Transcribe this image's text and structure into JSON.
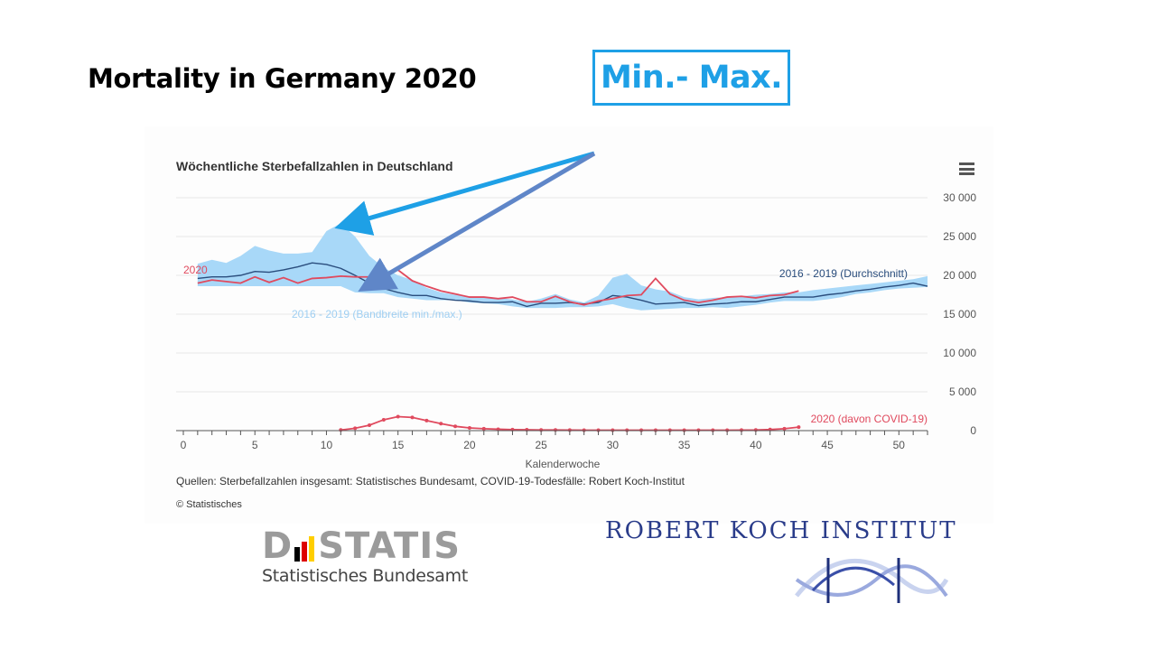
{
  "slide": {
    "title": "Mortality in Germany 2020",
    "annotation_box": "Min.- Max."
  },
  "colors": {
    "range_band": "#a8d8f8",
    "average_line": "#2a4d7d",
    "line_2020": "#e04a5e",
    "annotation_blue": "#1ea0e6",
    "arrow_second": "#5f86c8",
    "rki_blue": "#2a3c8a"
  },
  "chart_data": {
    "type": "line",
    "title": "Wöchentliche Sterbefallzahlen in Deutschland",
    "xlabel": "Kalenderwoche",
    "ylabel": "",
    "xlim": [
      0,
      52
    ],
    "ylim": [
      0,
      30000
    ],
    "x_ticks": [
      0,
      5,
      10,
      15,
      20,
      25,
      30,
      35,
      40,
      45,
      50
    ],
    "y_ticks": [
      0,
      5000,
      10000,
      15000,
      20000,
      25000,
      30000
    ],
    "y_tick_labels": [
      "0",
      "5 000",
      "10 000",
      "15 000",
      "20 000",
      "25 000",
      "30 000"
    ],
    "grid": true,
    "series": [
      {
        "name": "2016 - 2019 (Bandbreite min./max.)",
        "kind": "range",
        "x": [
          1,
          2,
          3,
          4,
          5,
          6,
          7,
          8,
          9,
          10,
          11,
          12,
          13,
          14,
          15,
          16,
          17,
          18,
          19,
          20,
          21,
          22,
          23,
          24,
          25,
          26,
          27,
          28,
          29,
          30,
          31,
          32,
          33,
          34,
          35,
          36,
          37,
          38,
          39,
          40,
          41,
          42,
          43,
          44,
          45,
          46,
          47,
          48,
          49,
          50,
          51,
          52
        ],
        "low": [
          18600,
          18600,
          18600,
          18600,
          18600,
          18600,
          18600,
          18600,
          18600,
          18600,
          18600,
          17800,
          17700,
          17700,
          17200,
          17000,
          16800,
          16800,
          16800,
          16500,
          16400,
          16300,
          16000,
          15800,
          15800,
          15800,
          15900,
          15900,
          16000,
          16300,
          15800,
          15500,
          15600,
          15700,
          15800,
          15800,
          15900,
          15800,
          16000,
          16200,
          16500,
          16700,
          16700,
          16700,
          16900,
          17200,
          17600,
          17800,
          18100,
          18300,
          18400,
          18500
        ],
        "high": [
          21500,
          22000,
          21600,
          22500,
          23800,
          23200,
          22800,
          22800,
          23000,
          25700,
          26700,
          25000,
          22500,
          21000,
          20000,
          19400,
          18400,
          17800,
          17500,
          17300,
          17100,
          17100,
          16900,
          16600,
          17000,
          17600,
          16900,
          16500,
          17400,
          19700,
          20200,
          18700,
          18200,
          17900,
          17200,
          16900,
          17100,
          17200,
          17300,
          17500,
          17600,
          17800,
          17800,
          18100,
          18300,
          18500,
          18700,
          18900,
          19100,
          19300,
          19500,
          19900
        ]
      },
      {
        "name": "2016 - 2019 (Durchschnitt)",
        "kind": "line",
        "x": [
          1,
          2,
          3,
          4,
          5,
          6,
          7,
          8,
          9,
          10,
          11,
          12,
          13,
          14,
          15,
          16,
          17,
          18,
          19,
          20,
          21,
          22,
          23,
          24,
          25,
          26,
          27,
          28,
          29,
          30,
          31,
          32,
          33,
          34,
          35,
          36,
          37,
          38,
          39,
          40,
          41,
          42,
          43,
          44,
          45,
          46,
          47,
          48,
          49,
          50,
          51,
          52
        ],
        "values": [
          19600,
          19800,
          19800,
          20000,
          20500,
          20400,
          20700,
          21100,
          21600,
          21400,
          20900,
          20000,
          19000,
          18300,
          17800,
          17400,
          17400,
          17000,
          16800,
          16700,
          16500,
          16500,
          16600,
          16000,
          16400,
          16400,
          16500,
          16300,
          16500,
          17400,
          17200,
          16800,
          16300,
          16400,
          16500,
          16100,
          16300,
          16400,
          16600,
          16600,
          16900,
          17200,
          17200,
          17200,
          17500,
          17700,
          18000,
          18200,
          18500,
          18700,
          19000,
          18600
        ]
      },
      {
        "name": "2020",
        "kind": "line",
        "x": [
          1,
          2,
          3,
          4,
          5,
          6,
          7,
          8,
          9,
          10,
          11,
          12,
          13,
          14,
          15,
          16,
          17,
          18,
          19,
          20,
          21,
          22,
          23,
          24,
          25,
          26,
          27,
          28,
          29,
          30,
          31,
          32,
          33,
          34,
          35,
          36,
          37,
          38,
          39,
          40,
          41,
          42,
          43
        ],
        "values": [
          19000,
          19400,
          19200,
          19000,
          19800,
          19100,
          19700,
          19000,
          19600,
          19700,
          19900,
          19800,
          19800,
          20000,
          20700,
          19300,
          18600,
          18000,
          17600,
          17200,
          17200,
          17000,
          17200,
          16600,
          16600,
          17300,
          16600,
          16200,
          16700,
          17000,
          17400,
          17500,
          19600,
          17600,
          16800,
          16500,
          16800,
          17200,
          17300,
          17100,
          17400,
          17500,
          18000
        ]
      },
      {
        "name": "2020 (davon COVID-19)",
        "kind": "line",
        "x": [
          11,
          12,
          13,
          14,
          15,
          16,
          17,
          18,
          19,
          20,
          21,
          22,
          23,
          24,
          25,
          26,
          27,
          28,
          29,
          30,
          31,
          32,
          33,
          34,
          35,
          36,
          37,
          38,
          39,
          40,
          41,
          42,
          43
        ],
        "values": [
          80,
          300,
          700,
          1400,
          1800,
          1700,
          1300,
          900,
          550,
          350,
          250,
          180,
          130,
          110,
          90,
          80,
          70,
          60,
          60,
          60,
          60,
          60,
          60,
          60,
          60,
          60,
          60,
          60,
          70,
          80,
          140,
          250,
          450
        ]
      }
    ],
    "labels": {
      "year_2020": "2020",
      "average": "2016 - 2019 (Durchschnitt)",
      "range": "2016 - 2019 (Bandbreite min./max.)",
      "covid": "2020 (davon COVID-19)"
    }
  },
  "source_text": "Quellen: Sterbefallzahlen insgesamt: Statistisches Bundesamt, COVID-19-Todesfälle: Robert Koch-Institut",
  "credit_text": "© Statistisches",
  "logos": {
    "destatis_left": "D",
    "destatis_right": "STATIS",
    "destatis_sub": "Statistisches Bundesamt",
    "rki": "ROBERT KOCH INSTITUT"
  }
}
